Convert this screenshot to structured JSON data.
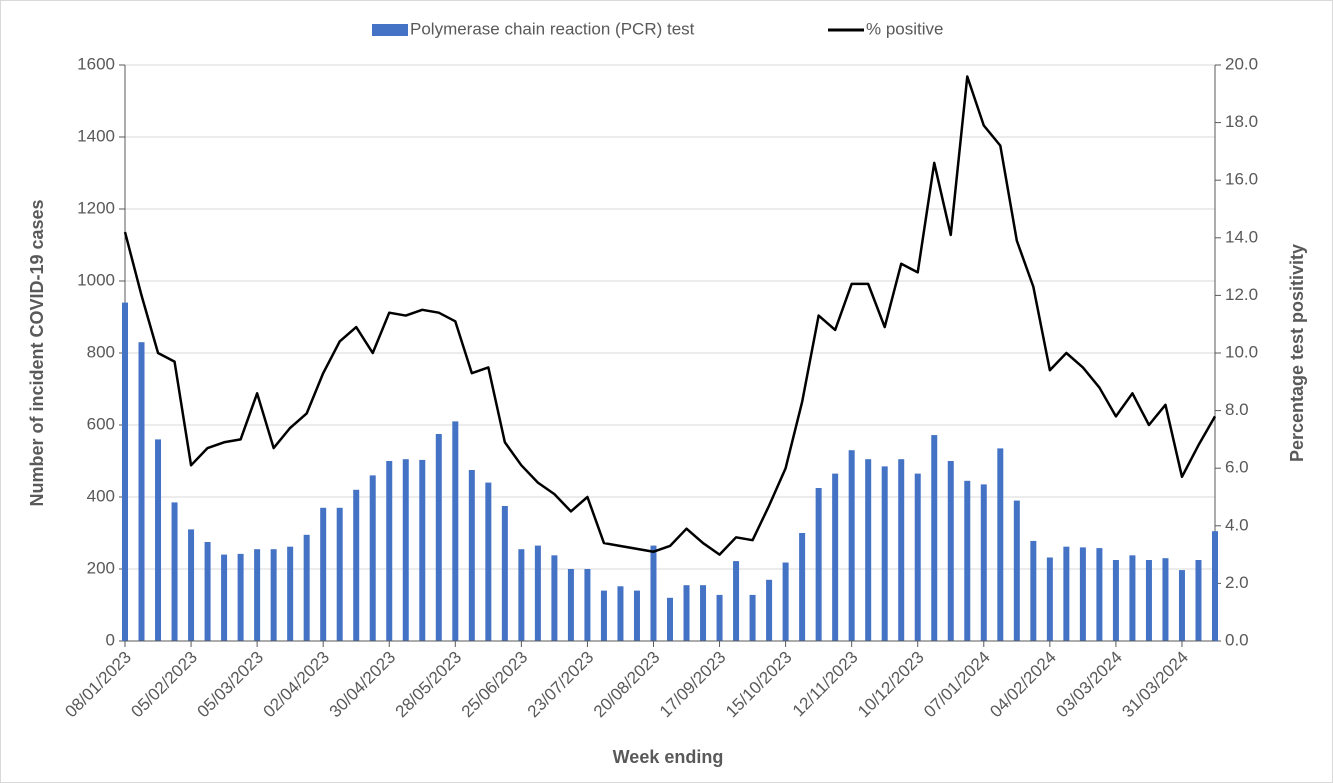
{
  "chart_data": {
    "type": "bar-line",
    "x_label": "Week ending",
    "y_label": "Number of incident COVID-19 cases",
    "y2_label": "Percentage test positivity",
    "categories": [
      "08/01/2023",
      null,
      null,
      null,
      "05/02/2023",
      null,
      null,
      null,
      "05/03/2023",
      null,
      null,
      null,
      "02/04/2023",
      null,
      null,
      null,
      "30/04/2023",
      null,
      null,
      null,
      "28/05/2023",
      null,
      null,
      null,
      "25/06/2023",
      null,
      null,
      null,
      "23/07/2023",
      null,
      null,
      null,
      "20/08/2023",
      null,
      null,
      null,
      "17/09/2023",
      null,
      null,
      null,
      "15/10/2023",
      null,
      null,
      null,
      "12/11/2023",
      null,
      null,
      null,
      "10/12/2023",
      null,
      null,
      null,
      "07/01/2024",
      null,
      null,
      null,
      "04/02/2024",
      null,
      null,
      null,
      "03/03/2024",
      null,
      null,
      null,
      "31/03/2024",
      null,
      null
    ],
    "series": [
      {
        "name": "Polymerase chain reaction (PCR) test",
        "type": "bar",
        "color": "#4472c4",
        "values": [
          940,
          830,
          560,
          385,
          310,
          275,
          240,
          242,
          255,
          255,
          262,
          295,
          370,
          370,
          420,
          460,
          500,
          505,
          503,
          575,
          610,
          475,
          440,
          375,
          255,
          265,
          238,
          200,
          200,
          140,
          152,
          140,
          265,
          120,
          155,
          155,
          128,
          222,
          128,
          170,
          218,
          300,
          425,
          465,
          530,
          505,
          485,
          505,
          465,
          572,
          500,
          445,
          435,
          535,
          390,
          278,
          232,
          262,
          260,
          258,
          225,
          238,
          225,
          230,
          197,
          225,
          305
        ]
      },
      {
        "name": "% positive",
        "type": "line",
        "color": "#000000",
        "axis": "y2",
        "values": [
          14.2,
          12.0,
          10.0,
          9.7,
          6.1,
          6.7,
          6.9,
          7.0,
          8.6,
          6.7,
          7.4,
          7.9,
          9.3,
          10.4,
          10.9,
          10.0,
          11.4,
          11.3,
          11.5,
          11.4,
          11.1,
          9.3,
          9.5,
          6.9,
          6.1,
          5.5,
          5.1,
          4.5,
          5.0,
          3.4,
          3.3,
          3.2,
          3.1,
          3.3,
          3.9,
          3.4,
          3.0,
          3.6,
          3.5,
          4.7,
          6.0,
          8.3,
          11.3,
          10.8,
          12.4,
          12.4,
          10.9,
          13.1,
          12.8,
          16.6,
          14.1,
          19.6,
          17.9,
          17.2,
          13.9,
          12.3,
          9.4,
          10.0,
          9.5,
          8.8,
          7.8,
          8.6,
          7.5,
          8.2,
          5.7,
          6.8,
          7.8
        ]
      }
    ],
    "ylim": [
      0,
      1600
    ],
    "yticks": [
      0,
      200,
      400,
      600,
      800,
      1000,
      1200,
      1400,
      1600
    ],
    "y2lim": [
      0,
      20
    ],
    "y2ticks": [
      {
        "value": 0,
        "label": "0.0"
      },
      {
        "value": 2,
        "label": "2.0"
      },
      {
        "value": 4,
        "label": "4.0"
      },
      {
        "value": 6,
        "label": "6.0"
      },
      {
        "value": 8,
        "label": "8.0"
      },
      {
        "value": 10,
        "label": "10.0"
      },
      {
        "value": 12,
        "label": "12.0"
      },
      {
        "value": 14,
        "label": "14.0"
      },
      {
        "value": 16,
        "label": "16.0"
      },
      {
        "value": 18,
        "label": "18.0"
      },
      {
        "value": 20,
        "label": "20.0"
      }
    ],
    "grid": true,
    "legend": "top"
  }
}
